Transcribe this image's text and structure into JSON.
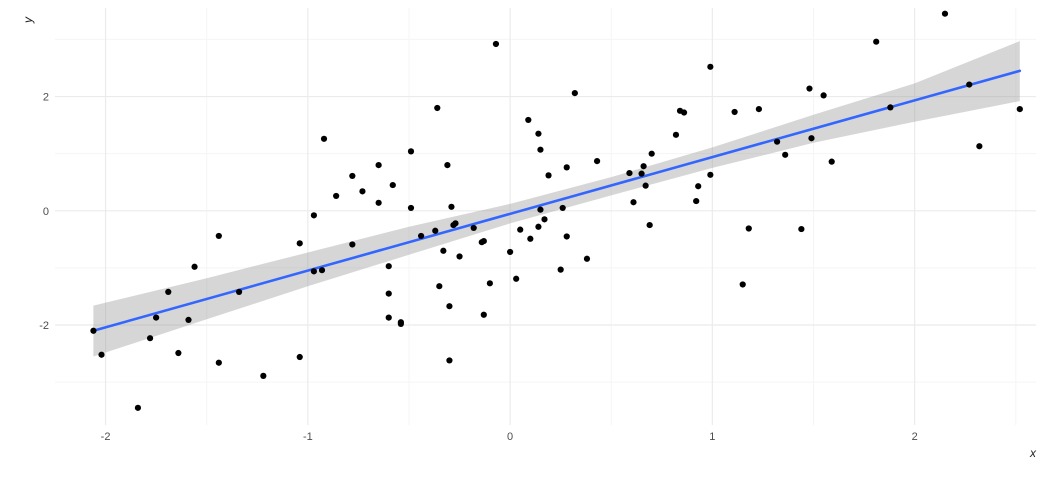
{
  "chart_data": {
    "type": "scatter",
    "title": "",
    "xlabel": "x",
    "ylabel": "y",
    "xlim": [
      -2.25,
      2.6
    ],
    "ylim": [
      -3.75,
      3.55
    ],
    "grid": true,
    "x_ticks": [
      -2,
      -1,
      0,
      1,
      2
    ],
    "x_tick_labels": [
      "-2",
      "-1",
      "0",
      "1",
      "2"
    ],
    "y_ticks": [
      -2,
      0,
      2
    ],
    "y_tick_labels": [
      "-2",
      "0",
      "2"
    ],
    "colors": {
      "points": "#000000",
      "fit_line": "#3366ff",
      "ribbon": "#999999",
      "grid_major": "#ebebeb",
      "grid_minor": "#f5f5f5"
    },
    "points": [
      {
        "x": -2.06,
        "y": -2.1
      },
      {
        "x": -2.02,
        "y": -2.52
      },
      {
        "x": -1.84,
        "y": -3.45
      },
      {
        "x": -1.78,
        "y": -2.23
      },
      {
        "x": -1.75,
        "y": -1.87
      },
      {
        "x": -1.69,
        "y": -1.42
      },
      {
        "x": -1.64,
        "y": -2.49
      },
      {
        "x": -1.59,
        "y": -1.91
      },
      {
        "x": -1.56,
        "y": -0.98
      },
      {
        "x": -1.44,
        "y": -0.44
      },
      {
        "x": -1.44,
        "y": -2.66
      },
      {
        "x": -1.34,
        "y": -1.42
      },
      {
        "x": -1.22,
        "y": -2.89
      },
      {
        "x": -1.04,
        "y": -2.56
      },
      {
        "x": -1.04,
        "y": -0.57
      },
      {
        "x": -0.97,
        "y": -1.06
      },
      {
        "x": -0.97,
        "y": -0.08
      },
      {
        "x": -0.93,
        "y": -1.04
      },
      {
        "x": -0.92,
        "y": 1.26
      },
      {
        "x": -0.86,
        "y": 0.26
      },
      {
        "x": -0.78,
        "y": 0.61
      },
      {
        "x": -0.78,
        "y": -0.59
      },
      {
        "x": -0.73,
        "y": 0.34
      },
      {
        "x": -0.65,
        "y": 0.8
      },
      {
        "x": -0.65,
        "y": 0.14
      },
      {
        "x": -0.6,
        "y": -0.97
      },
      {
        "x": -0.6,
        "y": -1.45
      },
      {
        "x": -0.6,
        "y": -1.87
      },
      {
        "x": -0.58,
        "y": 0.45
      },
      {
        "x": -0.54,
        "y": -1.98
      },
      {
        "x": -0.54,
        "y": -1.95
      },
      {
        "x": -0.49,
        "y": 1.04
      },
      {
        "x": -0.49,
        "y": 0.05
      },
      {
        "x": -0.44,
        "y": -0.44
      },
      {
        "x": -0.37,
        "y": -0.35
      },
      {
        "x": -0.36,
        "y": 1.8
      },
      {
        "x": -0.35,
        "y": -1.32
      },
      {
        "x": -0.33,
        "y": -0.7
      },
      {
        "x": -0.31,
        "y": 0.8
      },
      {
        "x": -0.3,
        "y": -1.67
      },
      {
        "x": -0.3,
        "y": -2.62
      },
      {
        "x": -0.29,
        "y": 0.07
      },
      {
        "x": -0.28,
        "y": -0.25
      },
      {
        "x": -0.27,
        "y": -0.22
      },
      {
        "x": -0.25,
        "y": -0.8
      },
      {
        "x": -0.18,
        "y": -0.3
      },
      {
        "x": -0.14,
        "y": -0.55
      },
      {
        "x": -0.13,
        "y": -1.82
      },
      {
        "x": -0.13,
        "y": -0.53
      },
      {
        "x": -0.1,
        "y": -1.27
      },
      {
        "x": -0.07,
        "y": 2.92
      },
      {
        "x": 0.0,
        "y": -0.72
      },
      {
        "x": 0.03,
        "y": -1.19
      },
      {
        "x": 0.05,
        "y": -0.33
      },
      {
        "x": 0.09,
        "y": 1.59
      },
      {
        "x": 0.1,
        "y": -0.49
      },
      {
        "x": 0.14,
        "y": -0.28
      },
      {
        "x": 0.14,
        "y": 1.35
      },
      {
        "x": 0.15,
        "y": 1.07
      },
      {
        "x": 0.15,
        "y": 0.02
      },
      {
        "x": 0.17,
        "y": -0.15
      },
      {
        "x": 0.19,
        "y": 0.62
      },
      {
        "x": 0.25,
        "y": -1.03
      },
      {
        "x": 0.26,
        "y": 0.05
      },
      {
        "x": 0.28,
        "y": -0.45
      },
      {
        "x": 0.28,
        "y": 0.76
      },
      {
        "x": 0.32,
        "y": 2.06
      },
      {
        "x": 0.38,
        "y": -0.84
      },
      {
        "x": 0.43,
        "y": 0.87
      },
      {
        "x": 0.59,
        "y": 0.66
      },
      {
        "x": 0.61,
        "y": 0.15
      },
      {
        "x": 0.65,
        "y": 0.65
      },
      {
        "x": 0.66,
        "y": 0.78
      },
      {
        "x": 0.67,
        "y": 0.44
      },
      {
        "x": 0.69,
        "y": -0.25
      },
      {
        "x": 0.7,
        "y": 1.0
      },
      {
        "x": 0.82,
        "y": 1.33
      },
      {
        "x": 0.84,
        "y": 1.75
      },
      {
        "x": 0.86,
        "y": 1.72
      },
      {
        "x": 0.92,
        "y": 0.17
      },
      {
        "x": 0.93,
        "y": 0.43
      },
      {
        "x": 0.99,
        "y": 2.52
      },
      {
        "x": 0.99,
        "y": 0.63
      },
      {
        "x": 1.11,
        "y": 1.73
      },
      {
        "x": 1.15,
        "y": -1.29
      },
      {
        "x": 1.18,
        "y": -0.31
      },
      {
        "x": 1.23,
        "y": 1.78
      },
      {
        "x": 1.32,
        "y": 1.21
      },
      {
        "x": 1.36,
        "y": 0.98
      },
      {
        "x": 1.44,
        "y": -0.32
      },
      {
        "x": 1.48,
        "y": 2.14
      },
      {
        "x": 1.49,
        "y": 1.27
      },
      {
        "x": 1.55,
        "y": 2.02
      },
      {
        "x": 1.59,
        "y": 0.86
      },
      {
        "x": 1.81,
        "y": 2.96
      },
      {
        "x": 1.88,
        "y": 1.81
      },
      {
        "x": 2.15,
        "y": 3.45
      },
      {
        "x": 2.27,
        "y": 2.21
      },
      {
        "x": 2.32,
        "y": 1.13
      },
      {
        "x": 2.52,
        "y": 1.78
      }
    ],
    "fit_line": {
      "method": "lm",
      "x": [
        -2.06,
        2.52
      ],
      "y": [
        -2.1,
        2.45
      ]
    },
    "confidence_band": {
      "x": [
        -2.06,
        -1.5,
        -1.0,
        -0.5,
        0.0,
        0.5,
        1.0,
        1.5,
        2.0,
        2.52
      ],
      "lower": [
        -2.55,
        -1.9,
        -1.32,
        -0.77,
        -0.22,
        0.27,
        0.75,
        1.19,
        1.56,
        1.92
      ],
      "upper": [
        -1.66,
        -1.18,
        -0.73,
        -0.28,
        0.12,
        0.59,
        1.11,
        1.68,
        2.23,
        2.97
      ]
    }
  }
}
